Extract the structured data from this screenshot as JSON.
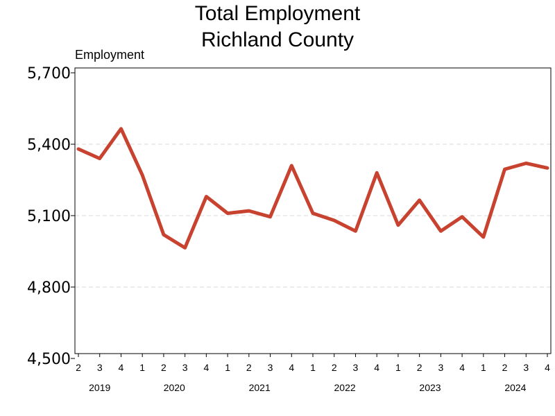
{
  "chart_data": {
    "type": "line",
    "title": [
      "Total Employment",
      "Richland County"
    ],
    "ylabel": "Employment",
    "xlabel": "",
    "ylim": [
      4500,
      5700
    ],
    "yticks": [
      4500,
      4800,
      5100,
      5400,
      5700
    ],
    "ytick_labels": [
      "4,500",
      "4,800",
      "5,100",
      "5,400",
      "5,700"
    ],
    "grid": "horizontal dashed",
    "x": [
      "2019 Q2",
      "2019 Q3",
      "2019 Q4",
      "2020 Q1",
      "2020 Q2",
      "2020 Q3",
      "2020 Q4",
      "2021 Q1",
      "2021 Q2",
      "2021 Q3",
      "2021 Q4",
      "2022 Q1",
      "2022 Q2",
      "2022 Q3",
      "2022 Q4",
      "2023 Q1",
      "2023 Q2",
      "2023 Q3",
      "2023 Q4",
      "2024 Q1",
      "2024 Q2",
      "2024 Q3",
      "2024 Q4"
    ],
    "quarter_labels": [
      "2",
      "3",
      "4",
      "1",
      "2",
      "3",
      "4",
      "1",
      "2",
      "3",
      "4",
      "1",
      "2",
      "3",
      "4",
      "1",
      "2",
      "3",
      "4",
      "1",
      "2",
      "3",
      "4"
    ],
    "years": [
      {
        "label": "2019",
        "start": 0,
        "end": 2
      },
      {
        "label": "2020",
        "start": 3,
        "end": 6
      },
      {
        "label": "2021",
        "start": 7,
        "end": 10
      },
      {
        "label": "2022",
        "start": 11,
        "end": 14
      },
      {
        "label": "2023",
        "start": 15,
        "end": 18
      },
      {
        "label": "2024",
        "start": 19,
        "end": 22
      }
    ],
    "series": [
      {
        "color": "#c8432f",
        "values": [
          5380,
          5340,
          5465,
          5270,
          5020,
          4965,
          5180,
          5110,
          5120,
          5095,
          5310,
          5110,
          5080,
          5035,
          5280,
          5060,
          5165,
          5035,
          5095,
          5010,
          5295,
          5320,
          5300
        ]
      }
    ]
  }
}
